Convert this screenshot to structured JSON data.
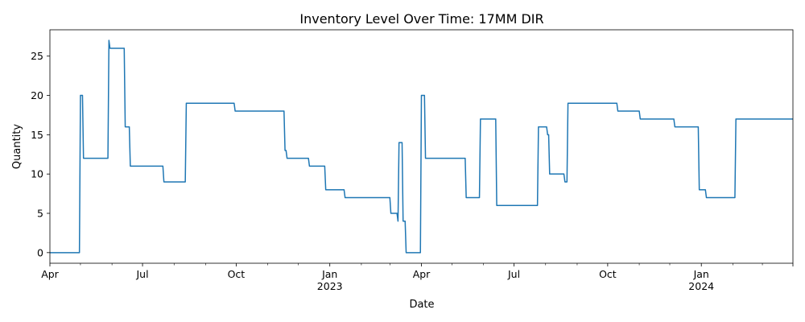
{
  "chart_data": {
    "type": "line",
    "title": "Inventory Level Over Time: 17MM DIR",
    "xlabel": "Date",
    "ylabel": "Quantity",
    "xlim": [
      "2022-04-01",
      "2024-03-31"
    ],
    "ylim": [
      -1.35,
      28.35
    ],
    "grid": false,
    "legend": "none",
    "y_ticks": [
      0,
      5,
      10,
      15,
      20,
      25
    ],
    "x_major_ticks": [
      {
        "date": "2022-04-01",
        "label": "Apr",
        "sublabel": ""
      },
      {
        "date": "2022-07-01",
        "label": "Jul",
        "sublabel": ""
      },
      {
        "date": "2022-10-01",
        "label": "Oct",
        "sublabel": ""
      },
      {
        "date": "2023-01-01",
        "label": "Jan",
        "sublabel": "2023"
      },
      {
        "date": "2023-04-01",
        "label": "Apr",
        "sublabel": ""
      },
      {
        "date": "2023-07-01",
        "label": "Jul",
        "sublabel": ""
      },
      {
        "date": "2023-10-01",
        "label": "Oct",
        "sublabel": ""
      },
      {
        "date": "2024-01-01",
        "label": "Jan",
        "sublabel": "2024"
      },
      {
        "date": "2024-03-31",
        "label": "",
        "sublabel": ""
      }
    ],
    "x_minor_ticks": [
      "2022-05-01",
      "2022-06-01",
      "2022-08-01",
      "2022-09-01",
      "2022-11-01",
      "2022-12-01",
      "2023-02-01",
      "2023-03-01",
      "2023-05-01",
      "2023-06-01",
      "2023-08-01",
      "2023-09-01",
      "2023-11-01",
      "2023-12-01",
      "2024-02-01",
      "2024-03-01"
    ],
    "series": [
      {
        "color": "#1f77b4",
        "points": [
          [
            "2022-04-01",
            0
          ],
          [
            "2022-04-30",
            0
          ],
          [
            "2022-05-01",
            20
          ],
          [
            "2022-05-03",
            20
          ],
          [
            "2022-05-04",
            12
          ],
          [
            "2022-05-28",
            12
          ],
          [
            "2022-05-29",
            27
          ],
          [
            "2022-05-30",
            26
          ],
          [
            "2022-06-13",
            26
          ],
          [
            "2022-06-14",
            16
          ],
          [
            "2022-06-18",
            16
          ],
          [
            "2022-06-19",
            11
          ],
          [
            "2022-07-21",
            11
          ],
          [
            "2022-07-22",
            9
          ],
          [
            "2022-08-12",
            9
          ],
          [
            "2022-08-13",
            19
          ],
          [
            "2022-09-29",
            19
          ],
          [
            "2022-09-30",
            18
          ],
          [
            "2022-11-17",
            18
          ],
          [
            "2022-11-18",
            13
          ],
          [
            "2022-11-19",
            13
          ],
          [
            "2022-11-20",
            12
          ],
          [
            "2022-12-11",
            12
          ],
          [
            "2022-12-12",
            11
          ],
          [
            "2022-12-27",
            11
          ],
          [
            "2022-12-28",
            8
          ],
          [
            "2023-01-15",
            8
          ],
          [
            "2023-01-16",
            7
          ],
          [
            "2023-03-01",
            7
          ],
          [
            "2023-03-02",
            5
          ],
          [
            "2023-03-08",
            5
          ],
          [
            "2023-03-09",
            4
          ],
          [
            "2023-03-10",
            14
          ],
          [
            "2023-03-13",
            14
          ],
          [
            "2023-03-14",
            4
          ],
          [
            "2023-03-16",
            4
          ],
          [
            "2023-03-17",
            0
          ],
          [
            "2023-03-31",
            0
          ],
          [
            "2023-04-01",
            20
          ],
          [
            "2023-04-04",
            20
          ],
          [
            "2023-04-05",
            12
          ],
          [
            "2023-05-14",
            12
          ],
          [
            "2023-05-15",
            7
          ],
          [
            "2023-05-28",
            7
          ],
          [
            "2023-05-29",
            17
          ],
          [
            "2023-06-13",
            17
          ],
          [
            "2023-06-14",
            6
          ],
          [
            "2023-07-24",
            6
          ],
          [
            "2023-07-25",
            16
          ],
          [
            "2023-08-02",
            16
          ],
          [
            "2023-08-03",
            15
          ],
          [
            "2023-08-04",
            15
          ],
          [
            "2023-08-05",
            10
          ],
          [
            "2023-08-19",
            10
          ],
          [
            "2023-08-20",
            9
          ],
          [
            "2023-08-22",
            9
          ],
          [
            "2023-08-23",
            19
          ],
          [
            "2023-10-10",
            19
          ],
          [
            "2023-10-11",
            18
          ],
          [
            "2023-11-01",
            18
          ],
          [
            "2023-11-02",
            17
          ],
          [
            "2023-12-05",
            17
          ],
          [
            "2023-12-06",
            16
          ],
          [
            "2023-12-29",
            16
          ],
          [
            "2023-12-30",
            8
          ],
          [
            "2024-01-05",
            8
          ],
          [
            "2024-01-06",
            7
          ],
          [
            "2024-02-03",
            7
          ],
          [
            "2024-02-04",
            17
          ],
          [
            "2024-03-31",
            17
          ]
        ]
      }
    ]
  }
}
